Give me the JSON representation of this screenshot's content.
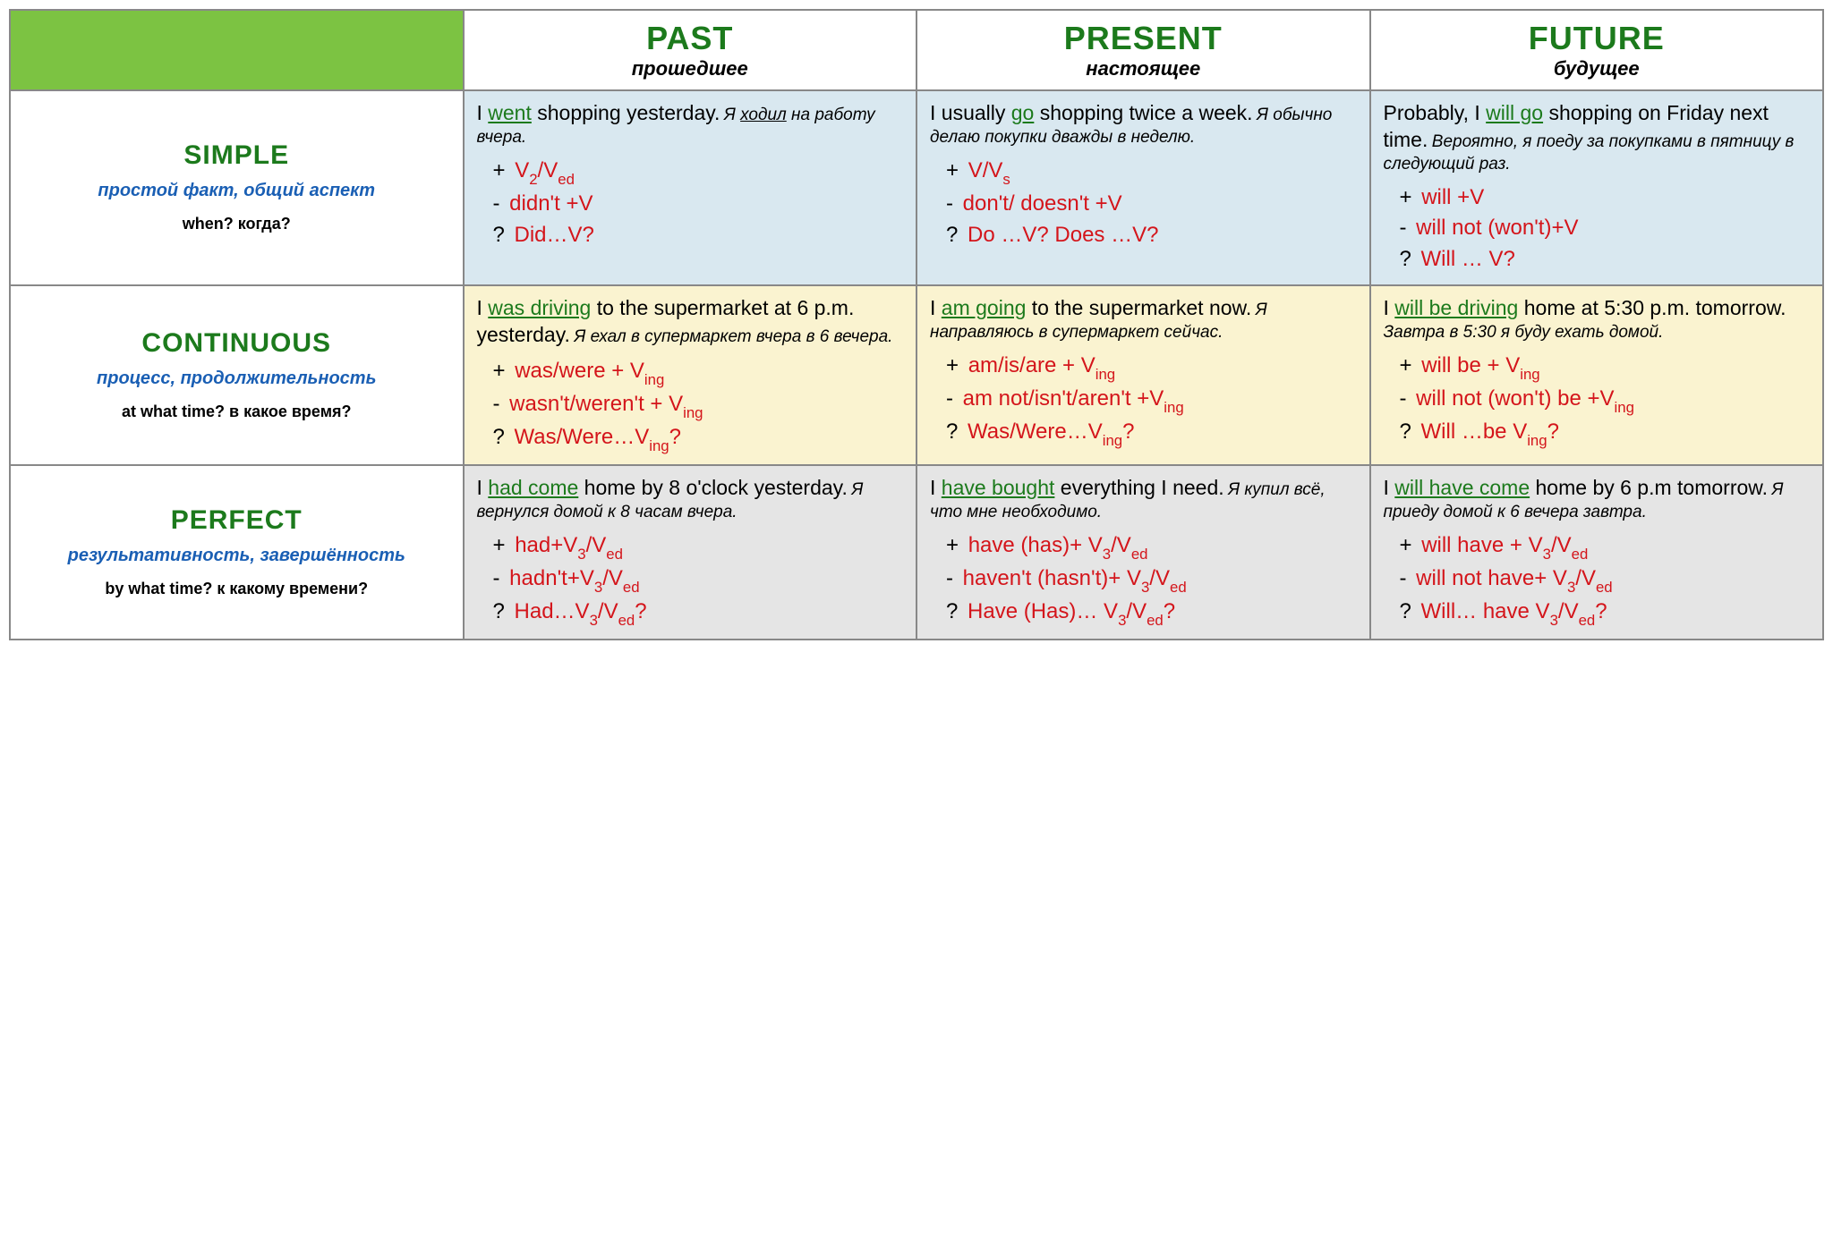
{
  "type": "table",
  "colors": {
    "corner_bg": "#7cc342",
    "header_green": "#1c7a1c",
    "desc_blue": "#1a5fb4",
    "formula_red": "#d4151b",
    "border": "#888888",
    "bg_simple": "#d9e8f0",
    "bg_continuous": "#faf3d0",
    "bg_perfect": "#e5e5e5"
  },
  "typography": {
    "col_head_en_fontsize": 36,
    "col_head_ru_fontsize": 22,
    "row_head_title_fontsize": 30,
    "row_head_desc_fontsize": 20,
    "row_head_q_fontsize": 18,
    "example_en_fontsize": 23,
    "example_ru_fontsize": 19,
    "formula_fontsize": 24
  },
  "columns": [
    {
      "key": "past",
      "en": "PAST",
      "ru": "прошедшее"
    },
    {
      "key": "present",
      "en": "PRESENT",
      "ru": "настоящее"
    },
    {
      "key": "future",
      "en": "FUTURE",
      "ru": "будущее"
    }
  ],
  "rows": [
    {
      "key": "simple",
      "title": "SIMPLE",
      "desc": "простой факт, общий аспект",
      "question": "when? когда?",
      "bg_class": "bg-simple",
      "cells": {
        "past": {
          "en_pre": "I ",
          "en_verb": "went",
          "en_post": " shopping yesterday.",
          "ru_pre": "Я ",
          "ru_verb": "ходил",
          "ru_post": " на работу вчера.",
          "plus_html": "V<sub>2</sub>/V<sub>ed</sub>",
          "minus_html": "didn't +V",
          "quest_html": "Did…V?"
        },
        "present": {
          "en_pre": "I usually ",
          "en_verb": "go",
          "en_post": " shopping twice a week.",
          "ru_pre": "",
          "ru_verb": "",
          "ru_post": "Я обычно делаю покупки дважды в неделю.",
          "plus_html": "V/V<sub>s</sub>",
          "minus_html": "don't/ doesn't +V",
          "quest_html": "Do …V? Does …V?"
        },
        "future": {
          "en_pre": "Probably, I ",
          "en_verb": "will go",
          "en_post": " shopping on Friday next time.",
          "ru_pre": "",
          "ru_verb": "",
          "ru_post": "Вероятно, я поеду за покупками в пятницу в следующий раз.",
          "plus_html": "will +V",
          "minus_html": "will not (won't)+V",
          "quest_html": "Will … V?"
        }
      }
    },
    {
      "key": "continuous",
      "title": "CONTINUOUS",
      "desc": "процесс, продолжительность",
      "question": "at what time? в какое время?",
      "bg_class": "bg-cont",
      "cells": {
        "past": {
          "en_pre": "I ",
          "en_verb": "was driving",
          "en_post": " to the supermarket at 6 p.m. yesterday.",
          "ru_pre": "",
          "ru_verb": "",
          "ru_post": "Я ехал в супермаркет вчера в 6 вечера.",
          "plus_html": "was/were + V<sub>ing</sub>",
          "minus_html": "wasn't/weren't + V<sub>ing</sub>",
          "quest_html": "Was/Were…V<sub>ing</sub>?"
        },
        "present": {
          "en_pre": "I ",
          "en_verb": "am going",
          "en_post": " to the supermarket now.",
          "ru_pre": "",
          "ru_verb": "",
          "ru_post": "Я направляюсь в супермаркет сейчас.",
          "plus_html": "am/is/are + V<sub>ing</sub>",
          "minus_html": "am not/isn't/aren't +V<sub>ing</sub>",
          "quest_html": "Was/Were…V<sub>ing</sub>?"
        },
        "future": {
          "en_pre": "I ",
          "en_verb": "will be driving",
          "en_post": " home at 5:30 p.m. tomorrow.",
          "ru_pre": "",
          "ru_verb": "",
          "ru_post": "Завтра в 5:30 я буду ехать домой.",
          "plus_html": "will be + V<sub>ing</sub>",
          "minus_html": "will not (won't) be +V<sub>ing</sub>",
          "quest_html": "Will …be V<sub>ing</sub>?"
        }
      }
    },
    {
      "key": "perfect",
      "title": "PERFECT",
      "desc": "результативность, завершённость",
      "question": "by what time? к какому времени?",
      "bg_class": "bg-perfect",
      "cells": {
        "past": {
          "en_pre": "I ",
          "en_verb": "had come",
          "en_post": " home by 8 o'clock yesterday.",
          "ru_pre": "",
          "ru_verb": "",
          "ru_post": "Я вернулся домой к 8 часам вчера.",
          "plus_html": "had+V<sub>3</sub>/V<sub>ed</sub>",
          "minus_html": "hadn't+V<sub>3</sub>/V<sub>ed</sub>",
          "quest_html": "Had…V<sub>3</sub>/V<sub>ed</sub>?"
        },
        "present": {
          "en_pre": "I ",
          "en_verb": "have bought",
          "en_post": " everything I need.",
          "ru_pre": "",
          "ru_verb": "",
          "ru_post": "Я купил всё, что мне необходимо.",
          "plus_html": "have (has)+ V<sub>3</sub>/V<sub>ed</sub>",
          "minus_html": "haven't (hasn't)+ V<sub>3</sub>/V<sub>ed</sub>",
          "quest_html": " Have (Has)… V<sub>3</sub>/V<sub>ed</sub>?"
        },
        "future": {
          "en_pre": "I ",
          "en_verb": "will have come",
          "en_post": " home by 6 p.m tomorrow.",
          "ru_pre": "",
          "ru_verb": "",
          "ru_post": "Я приеду домой к 6 вечера завтра.",
          "plus_html": "will have + V<sub>3</sub>/V<sub>ed</sub>",
          "minus_html": "will not have+ V<sub>3</sub>/V<sub>ed</sub>",
          "quest_html": " Will… have V<sub>3</sub>/V<sub>ed</sub>?"
        }
      }
    }
  ]
}
